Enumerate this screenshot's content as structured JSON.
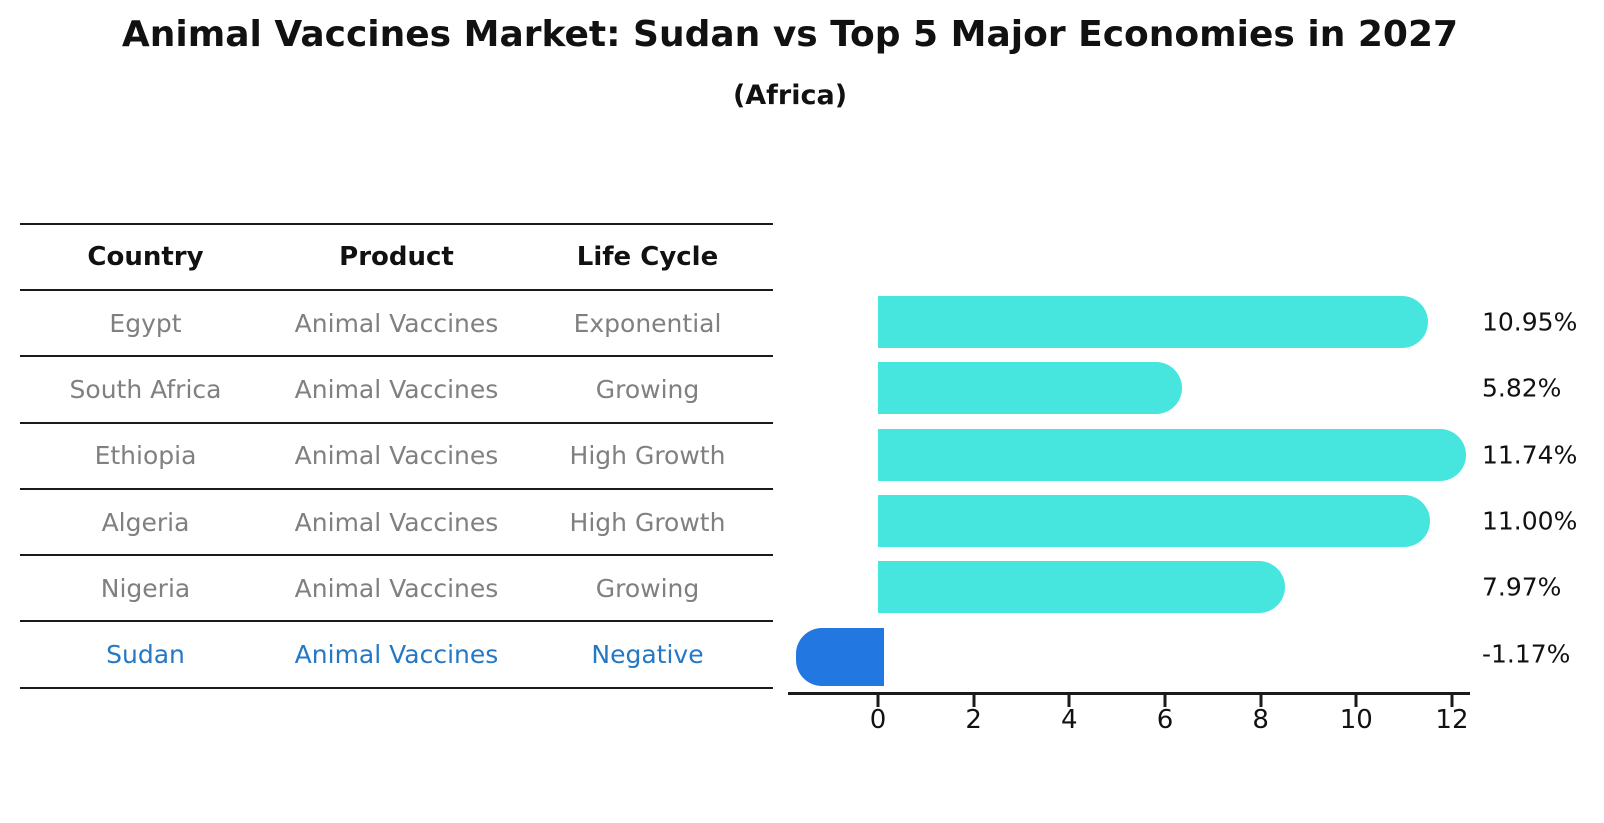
{
  "title": "Animal Vaccines Market: Sudan vs Top 5 Major Economies in 2027",
  "subtitle": "(Africa)",
  "table": {
    "headers": [
      "Country",
      "Product",
      "Life Cycle"
    ],
    "rows": [
      {
        "country": "Egypt",
        "product": "Animal Vaccines",
        "life_cycle": "Exponential",
        "highlight": false
      },
      {
        "country": "South Africa",
        "product": "Animal Vaccines",
        "life_cycle": "Growing",
        "highlight": false
      },
      {
        "country": "Ethiopia",
        "product": "Animal Vaccines",
        "life_cycle": "High Growth",
        "highlight": false
      },
      {
        "country": "Algeria",
        "product": "Animal Vaccines",
        "life_cycle": "High Growth",
        "highlight": false
      },
      {
        "country": "Nigeria",
        "product": "Animal Vaccines",
        "life_cycle": "Growing",
        "highlight": false
      },
      {
        "country": "Sudan",
        "product": "Animal Vaccines",
        "life_cycle": "Negative",
        "highlight": true
      }
    ]
  },
  "chart_data": {
    "type": "bar",
    "orientation": "horizontal",
    "title": "Animal Vaccines Market: Sudan vs Top 5 Major Economies in 2027",
    "subtitle": "(Africa)",
    "categories": [
      "Egypt",
      "South Africa",
      "Ethiopia",
      "Algeria",
      "Nigeria",
      "Sudan"
    ],
    "values": [
      10.95,
      5.82,
      11.74,
      11.0,
      7.97,
      -1.17
    ],
    "value_labels": [
      "10.95%",
      "5.82%",
      "11.74%",
      "11.00%",
      "7.97%",
      "-1.17%"
    ],
    "xticks": [
      0,
      2,
      4,
      6,
      8,
      10,
      12
    ],
    "xlim": [
      -1.9,
      12.4
    ],
    "xlabel": "",
    "ylabel": "",
    "grid": false,
    "legend": false,
    "bar_color": "#46E5DE",
    "negative_bar_color": "#2277E0",
    "negative_bar_style": "dotted-outline"
  },
  "colors": {
    "text_primary": "#111111",
    "text_gray": "#808080",
    "highlight_blue": "#2478C6",
    "line": "#1a1a1a",
    "background": "#ffffff"
  }
}
